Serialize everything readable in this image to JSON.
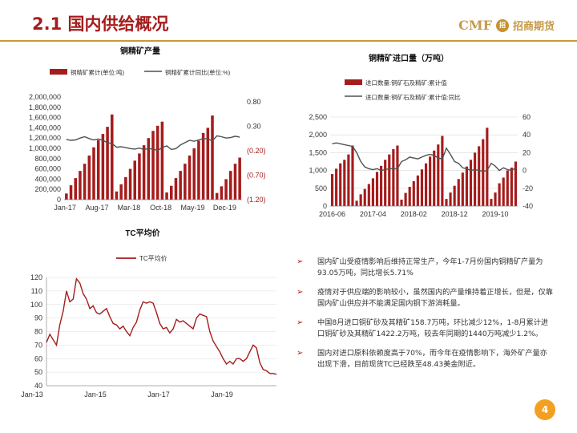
{
  "header": {
    "title": "2.1 国内供给概况"
  },
  "logo": {
    "brand": "CMF",
    "mark": "招",
    "name": "招商期货"
  },
  "page_number": "4",
  "colors": {
    "bar": "#a51c1c",
    "line": "#505050",
    "accent": "#a51c1c",
    "gold": "#c69a48"
  },
  "bullets": [
    {
      "icon": "bullet-arrow-icon",
      "text": "国内矿山受疫情影响后维持正常生产，今年1-7月份国内铜精矿产量为93.05万吨，同比增长5.71%"
    },
    {
      "icon": "bullet-arrow-icon",
      "text": "疫情对于供应端的影响较小，虽然国内的产量维持着正增长，但是，仅靠国内矿山供应并不能满足国内铜下游消耗量。"
    },
    {
      "icon": "bullet-arrow-icon",
      "text": "中国8月进口铜矿砂及其精矿158.7万吨，环比减少12%，1-8月累计进口铜矿砂及其精矿1422.2万吨，较去年同期的1440万吨减少1.2%。"
    },
    {
      "icon": "bullet-arrow-icon",
      "text": "国内对进口原料依赖度高于70%，而今年在疫情影响下，海外矿产量亦出现下滑，目前现货TC已经跌至48.43美金附近。"
    }
  ],
  "chart_data": [
    {
      "type": "bar",
      "title": "铜精矿产量",
      "legend": [
        "铜精矿累计(单位:吨)",
        "铜精矿累计同比(单位:%)"
      ],
      "x_tick_labels": [
        "Jan-17",
        "Aug-17",
        "Mar-18",
        "Oct-18",
        "May-19",
        "Dec-19"
      ],
      "y_left_ticks": [
        "2,000,000",
        "1,800,000",
        "1,600,000",
        "1,400,000",
        "1,200,000",
        "1,000,000",
        "800,000",
        "600,000",
        "400,000",
        "200,000",
        "0"
      ],
      "y_right_ticks": [
        "0.80",
        "0.30",
        "(0.20)",
        "(0.70)",
        "(1.20)"
      ],
      "ylim_left": [
        0,
        2000000
      ],
      "ylim_right": [
        -1.2,
        1.05
      ],
      "series": [
        {
          "name": "铜精矿累计(单位:吨)",
          "kind": "bar",
          "axis": "left",
          "values": [
            120000,
            280000,
            420000,
            560000,
            700000,
            860000,
            1020000,
            1160000,
            1280000,
            1420000,
            1660000,
            160000,
            300000,
            440000,
            600000,
            760000,
            900000,
            1060000,
            1200000,
            1340000,
            1440000,
            1520000,
            140000,
            270000,
            420000,
            560000,
            700000,
            860000,
            1000000,
            1150000,
            1300000,
            1400000,
            1640000,
            130000,
            260000,
            400000,
            560000,
            700000,
            820000
          ]
        },
        {
          "name": "铜精矿累计同比(单位:%)",
          "kind": "line",
          "axis": "right",
          "values": [
            0.12,
            0.1,
            0.11,
            0.15,
            0.18,
            0.14,
            0.11,
            0.13,
            0.1,
            0.05,
            0.03,
            -0.05,
            -0.04,
            -0.06,
            -0.08,
            -0.09,
            -0.07,
            -0.1,
            -0.08,
            -0.09,
            -0.12,
            -0.06,
            -0.02,
            -0.1,
            -0.08,
            0.0,
            0.05,
            0.1,
            0.08,
            0.11,
            0.14,
            0.13,
            0.09,
            0.2,
            0.18,
            0.15,
            0.16,
            0.19,
            0.17
          ]
        }
      ]
    },
    {
      "type": "bar",
      "title": "铜精矿进口量（万吨）",
      "legend": [
        "进口数量:铜矿石及精矿:累计值",
        "进口数量:铜矿石及精矿:累计值:同比"
      ],
      "x_tick_labels": [
        "2016-06",
        "2017-04",
        "2018-02",
        "2018-12",
        "2019-10"
      ],
      "y_left_ticks": [
        "2,500",
        "2,000",
        "1,500",
        "1,000",
        "500",
        "0"
      ],
      "y_right_ticks": [
        "60",
        "40",
        "20",
        "0",
        "-20",
        "-40"
      ],
      "ylim_left": [
        0,
        2500
      ],
      "ylim_right": [
        -40,
        60
      ],
      "series": [
        {
          "name": "进口数量:铜矿石及精矿:累计值",
          "kind": "bar",
          "axis": "left",
          "values": [
            900,
            1050,
            1200,
            1300,
            1450,
            1700,
            150,
            330,
            480,
            620,
            780,
            960,
            1130,
            1300,
            1450,
            1600,
            1700,
            180,
            370,
            540,
            700,
            860,
            1030,
            1200,
            1390,
            1560,
            1730,
            1970,
            200,
            380,
            570,
            760,
            940,
            1110,
            1300,
            1500,
            1680,
            1880,
            2200,
            200,
            380,
            640,
            800,
            1000,
            1080,
            1250
          ]
        },
        {
          "name": "进口数量:铜矿石及精矿:累计值:同比",
          "kind": "line",
          "axis": "right",
          "values": [
            30,
            31,
            30,
            29,
            28,
            27,
            20,
            10,
            4,
            2,
            1,
            2,
            0,
            1,
            2,
            2,
            2,
            10,
            12,
            15,
            14,
            13,
            15,
            17,
            18,
            17,
            14,
            13,
            25,
            18,
            10,
            8,
            3,
            2,
            0,
            1,
            0,
            -1,
            0,
            8,
            5,
            0,
            3,
            1,
            0,
            3
          ]
        }
      ]
    },
    {
      "type": "line",
      "title": "TC平均价",
      "legend": [
        "TC平均价"
      ],
      "x_tick_labels": [
        "Jan-13",
        "Jan-15",
        "Jan-17",
        "Jan-19"
      ],
      "y_ticks": [
        "120",
        "110",
        "100",
        "90",
        "80",
        "70",
        "60",
        "50",
        "40"
      ],
      "ylim": [
        40,
        120
      ],
      "series": [
        {
          "name": "TC平均价",
          "values": [
            72,
            78,
            74,
            70,
            85,
            95,
            110,
            102,
            104,
            119,
            116,
            108,
            104,
            97,
            99,
            94,
            93,
            95,
            97,
            91,
            86,
            85,
            82,
            84,
            80,
            77,
            83,
            87,
            96,
            102,
            101,
            102,
            101,
            94,
            86,
            82,
            83,
            79,
            82,
            89,
            87,
            88,
            86,
            84,
            82,
            90,
            93,
            92,
            91,
            80,
            73,
            69,
            65,
            60,
            56,
            58,
            56,
            60,
            60,
            58,
            60,
            65,
            70,
            68,
            57,
            52,
            51,
            49,
            49,
            48.43
          ]
        }
      ]
    }
  ]
}
